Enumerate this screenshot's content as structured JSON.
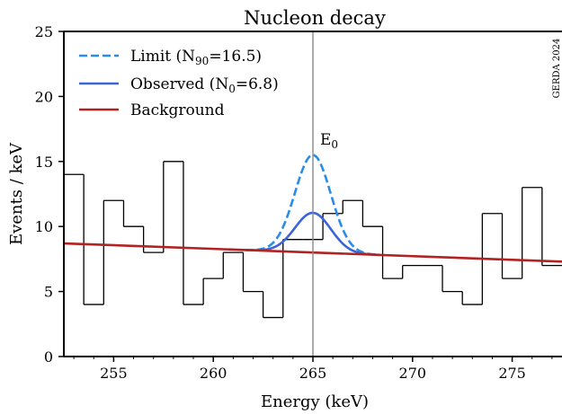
{
  "chart_data": {
    "type": "line",
    "title": "Nucleon decay",
    "xlabel": "Energy (keV)",
    "ylabel": "Events / keV",
    "xlim": [
      252.5,
      277.5
    ],
    "ylim": [
      0,
      25
    ],
    "xticks": [
      "255",
      "260",
      "265",
      "270",
      "275"
    ],
    "yticks": [
      "0",
      "5",
      "10",
      "15",
      "20",
      "25"
    ],
    "grid": false,
    "legend_position": "top-left",
    "legend": [
      {
        "label_main": "Limit (N",
        "label_sub": "90",
        "label_tail": "=16.5)",
        "style": "dashed",
        "color": "#2a8ce8"
      },
      {
        "label_main": "Observed (N",
        "label_sub": "0",
        "label_tail": "=6.8)",
        "style": "solid",
        "color": "#3b64d6"
      },
      {
        "label_main": "Background",
        "label_sub": "",
        "label_tail": "",
        "style": "solid",
        "color": "#b22222"
      }
    ],
    "watermark": "GERDA 2024",
    "annotation": {
      "main": "E",
      "sub": "0",
      "x": 265
    },
    "histogram": {
      "bin_edges": [
        252.5,
        253.5,
        254.5,
        255.5,
        256.5,
        257.5,
        258.5,
        259.5,
        260.5,
        261.5,
        262.5,
        263.5,
        264.5,
        265.5,
        266.5,
        267.5,
        268.5,
        269.5,
        270.5,
        271.5,
        272.5,
        273.5,
        274.5,
        275.5,
        276.5,
        277.5
      ],
      "counts": [
        14,
        4,
        12,
        10,
        8,
        15,
        4,
        6,
        8,
        5,
        3,
        9,
        9,
        11,
        12,
        10,
        6,
        7,
        7,
        5,
        4,
        11,
        6,
        13,
        7
      ]
    },
    "background_line": {
      "x": [
        252.5,
        277.5
      ],
      "y": [
        8.7,
        7.3
      ]
    },
    "peak": {
      "center": 265,
      "sigma": 0.9
    },
    "series": [
      {
        "name": "Limit (N90=16.5)",
        "peak_height": 7.5
      },
      {
        "name": "Observed (N0=6.8)",
        "peak_height": 3.05
      }
    ]
  }
}
